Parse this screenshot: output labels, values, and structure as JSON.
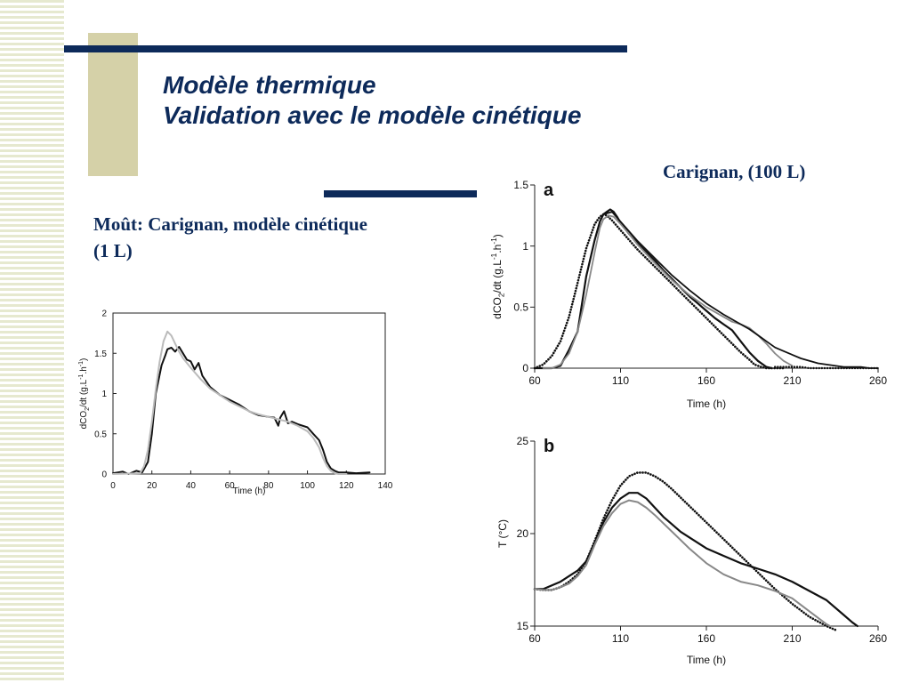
{
  "slide": {
    "title_line1": "Modèle thermique",
    "title_line2": "Validation avec le modèle cinétique",
    "label_left": "Moût: Carignan, modèle cinétique (1 L)",
    "label_right": "Carignan, (100 L)",
    "colors": {
      "navy": "#0d2a5a",
      "khaki": "#d5d1a8",
      "stripe": "#e6e9cf"
    }
  },
  "chart_data": [
    {
      "type": "line",
      "panel": "",
      "xlabel": "Time (h)",
      "ylabel_main": "dCO",
      "ylabel_sub": "2",
      "ylabel_rest": "/dt (g.L",
      "ylabel_sup1": "-1",
      "ylabel_mid": ".h",
      "ylabel_sup2": "-1",
      "ylabel_end": ")",
      "xlim": [
        0,
        140
      ],
      "ylim": [
        0,
        2
      ],
      "xticks": [
        0,
        20,
        40,
        60,
        80,
        100,
        120,
        140
      ],
      "yticks": [
        0,
        0.5,
        1,
        1.5,
        2
      ],
      "ytick_labels": [
        "0",
        "0.5",
        "1",
        "1.5",
        "2"
      ],
      "grid": false,
      "series": [
        {
          "color": "#111111",
          "style": "solid",
          "width": 2.0,
          "x": [
            0,
            5,
            8,
            12,
            15,
            18,
            20,
            22,
            25,
            27,
            28,
            30,
            32,
            34,
            36,
            38,
            40,
            42,
            44,
            46,
            50,
            55,
            60,
            65,
            70,
            75,
            80,
            83,
            85,
            86,
            88,
            90,
            92,
            95,
            100,
            103,
            106,
            108,
            110,
            112,
            114,
            116,
            120,
            125,
            132
          ],
          "y": [
            0.01,
            0.03,
            0.0,
            0.04,
            0.02,
            0.15,
            0.5,
            1.0,
            1.35,
            1.48,
            1.55,
            1.57,
            1.52,
            1.58,
            1.5,
            1.42,
            1.4,
            1.3,
            1.38,
            1.22,
            1.08,
            0.98,
            0.92,
            0.86,
            0.78,
            0.73,
            0.71,
            0.7,
            0.6,
            0.7,
            0.78,
            0.63,
            0.65,
            0.62,
            0.58,
            0.5,
            0.42,
            0.3,
            0.15,
            0.07,
            0.04,
            0.02,
            0.02,
            0.01,
            0.02
          ]
        },
        {
          "color": "#bbbbbb",
          "style": "solid",
          "width": 2.0,
          "x": [
            0,
            14,
            16,
            18,
            20,
            22,
            24,
            26,
            28,
            30,
            32,
            34,
            36,
            40,
            45,
            50,
            55,
            60,
            65,
            70,
            75,
            80,
            85,
            90,
            95,
            100,
            103,
            106,
            108,
            110,
            112,
            114,
            116,
            120
          ],
          "y": [
            0,
            0.01,
            0.1,
            0.3,
            0.65,
            1.05,
            1.4,
            1.65,
            1.77,
            1.72,
            1.62,
            1.52,
            1.44,
            1.32,
            1.18,
            1.06,
            0.98,
            0.9,
            0.84,
            0.78,
            0.74,
            0.71,
            0.68,
            0.65,
            0.6,
            0.53,
            0.45,
            0.33,
            0.2,
            0.1,
            0.04,
            0.01,
            0.0,
            0.0
          ]
        }
      ]
    },
    {
      "type": "line",
      "panel": "a",
      "xlabel": "Time (h)",
      "ylabel_main": "dCO",
      "ylabel_sub": "2",
      "ylabel_rest": "/dt (g.L",
      "ylabel_sup1": "-1",
      "ylabel_mid": ".h",
      "ylabel_sup2": "-1",
      "ylabel_end": ")",
      "xlim": [
        60,
        260
      ],
      "ylim": [
        0,
        1.5
      ],
      "xticks": [
        60,
        110,
        160,
        210,
        260
      ],
      "yticks": [
        0,
        0.5,
        1,
        1.5
      ],
      "ytick_labels": [
        "0",
        "0.5",
        "1",
        "1.5"
      ],
      "grid": false,
      "series": [
        {
          "color": "#111111",
          "style": "solid",
          "width": 2.2,
          "x": [
            60,
            70,
            75,
            80,
            85,
            90,
            95,
            98,
            100,
            102,
            104,
            106,
            108,
            110,
            115,
            120,
            125,
            130,
            135,
            140,
            145,
            150,
            155,
            160,
            165,
            170,
            175,
            180,
            185,
            190,
            195,
            198
          ],
          "y": [
            0,
            0,
            0.02,
            0.15,
            0.3,
            0.75,
            1.05,
            1.2,
            1.26,
            1.28,
            1.3,
            1.28,
            1.24,
            1.19,
            1.1,
            1.02,
            0.95,
            0.88,
            0.8,
            0.73,
            0.66,
            0.59,
            0.53,
            0.47,
            0.41,
            0.36,
            0.31,
            0.22,
            0.13,
            0.06,
            0.01,
            0
          ]
        },
        {
          "color": "#111111",
          "style": "dotted",
          "width": 2.6,
          "x": [
            60,
            65,
            70,
            75,
            80,
            85,
            90,
            95,
            98,
            100,
            102,
            105,
            110,
            115,
            120,
            125,
            130,
            135,
            140,
            145,
            150,
            155,
            160,
            165,
            170,
            175,
            180,
            185,
            188,
            190,
            192,
            195,
            200,
            205
          ],
          "y": [
            0,
            0.03,
            0.1,
            0.22,
            0.42,
            0.7,
            0.98,
            1.18,
            1.24,
            1.26,
            1.25,
            1.21,
            1.13,
            1.05,
            0.97,
            0.9,
            0.83,
            0.76,
            0.69,
            0.62,
            0.55,
            0.48,
            0.41,
            0.34,
            0.27,
            0.2,
            0.13,
            0.07,
            0.03,
            0.02,
            0.01,
            0.0,
            0.0,
            0.0
          ]
        },
        {
          "color": "#888888",
          "style": "solid",
          "width": 1.8,
          "x": [
            65,
            70,
            75,
            80,
            85,
            90,
            95,
            98,
            100,
            103,
            106,
            110,
            115,
            120,
            130,
            140,
            150,
            160,
            170,
            175,
            180,
            185,
            190,
            195,
            200,
            205,
            210
          ],
          "y": [
            0,
            0.0,
            0.03,
            0.12,
            0.3,
            0.6,
            0.95,
            1.15,
            1.22,
            1.25,
            1.24,
            1.18,
            1.1,
            1.01,
            0.86,
            0.72,
            0.6,
            0.5,
            0.42,
            0.38,
            0.36,
            0.33,
            0.27,
            0.2,
            0.12,
            0.06,
            0.02
          ]
        },
        {
          "color": "#111111",
          "style": "solid",
          "width": 1.8,
          "x": [
            100,
            105,
            110,
            120,
            130,
            140,
            150,
            160,
            170,
            180,
            185,
            190,
            195,
            200,
            205,
            210,
            215,
            220,
            225,
            230,
            240,
            250,
            255,
            260
          ],
          "y": [
            1.26,
            1.28,
            1.2,
            1.04,
            0.9,
            0.76,
            0.64,
            0.53,
            0.44,
            0.36,
            0.32,
            0.27,
            0.22,
            0.17,
            0.14,
            0.11,
            0.08,
            0.06,
            0.04,
            0.03,
            0.01,
            0.01,
            0.0,
            0.0
          ]
        },
        {
          "color": "#111111",
          "style": "dotted",
          "width": 2.4,
          "x": [
            200,
            205,
            210,
            215,
            220,
            225,
            230,
            235,
            240,
            245,
            250,
            255,
            260
          ],
          "y": [
            0.01,
            0.01,
            0.01,
            0.01,
            0.0,
            0.0,
            0.0,
            0.0,
            0.0,
            0.0,
            0.0,
            0.0,
            0.0
          ]
        }
      ]
    },
    {
      "type": "line",
      "panel": "b",
      "xlabel": "Time (h)",
      "ylabel_main": "T (°C)",
      "xlim": [
        60,
        260
      ],
      "ylim": [
        15,
        25
      ],
      "xticks": [
        60,
        110,
        160,
        210,
        260
      ],
      "yticks": [
        15,
        20,
        25
      ],
      "ytick_labels": [
        "15",
        "20",
        "25"
      ],
      "grid": false,
      "series": [
        {
          "color": "#111111",
          "style": "dotted",
          "width": 2.6,
          "x": [
            60,
            65,
            70,
            75,
            80,
            85,
            90,
            95,
            100,
            105,
            110,
            115,
            120,
            125,
            130,
            135,
            140,
            150,
            160,
            170,
            180,
            190,
            200,
            210,
            220,
            230,
            235
          ],
          "y": [
            17.0,
            16.95,
            16.95,
            17.1,
            17.4,
            17.8,
            18.5,
            19.6,
            20.8,
            21.8,
            22.6,
            23.1,
            23.3,
            23.3,
            23.1,
            22.8,
            22.4,
            21.5,
            20.6,
            19.7,
            18.8,
            17.9,
            17.0,
            16.2,
            15.5,
            15.0,
            14.8
          ]
        },
        {
          "color": "#111111",
          "style": "solid",
          "width": 2.2,
          "x": [
            60,
            65,
            70,
            75,
            80,
            85,
            90,
            95,
            100,
            105,
            110,
            115,
            120,
            125,
            130,
            135,
            140,
            145,
            150,
            160,
            170,
            180,
            190,
            200,
            210,
            220,
            230,
            240,
            245,
            248
          ],
          "y": [
            17.0,
            17.0,
            17.2,
            17.4,
            17.7,
            18.0,
            18.5,
            19.5,
            20.6,
            21.4,
            21.9,
            22.2,
            22.2,
            21.9,
            21.4,
            20.9,
            20.5,
            20.1,
            19.8,
            19.2,
            18.8,
            18.4,
            18.1,
            17.8,
            17.4,
            16.9,
            16.4,
            15.6,
            15.2,
            15.0
          ]
        },
        {
          "color": "#888888",
          "style": "solid",
          "width": 2.0,
          "x": [
            60,
            65,
            70,
            75,
            80,
            85,
            90,
            95,
            100,
            105,
            110,
            115,
            120,
            125,
            130,
            140,
            150,
            160,
            170,
            180,
            190,
            200,
            210,
            220,
            230,
            232
          ],
          "y": [
            17.0,
            16.95,
            16.95,
            17.1,
            17.3,
            17.7,
            18.3,
            19.4,
            20.4,
            21.1,
            21.6,
            21.8,
            21.7,
            21.4,
            21.0,
            20.1,
            19.2,
            18.4,
            17.8,
            17.4,
            17.2,
            16.9,
            16.5,
            15.8,
            15.1,
            15.0
          ]
        }
      ]
    }
  ]
}
